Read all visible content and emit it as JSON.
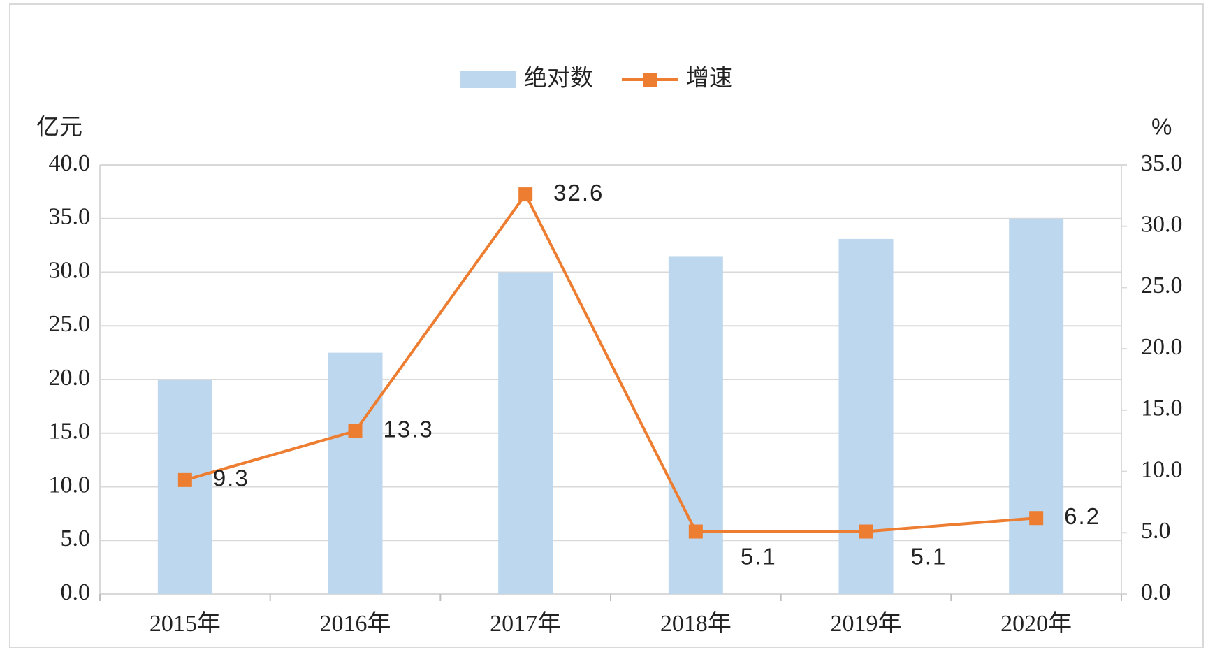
{
  "chart_data": {
    "type": "bar-line",
    "categories": [
      "2015年",
      "2016年",
      "2017年",
      "2018年",
      "2019年",
      "2020年"
    ],
    "series": [
      {
        "name": "绝对数",
        "type": "bar",
        "color": "#bdd7ee",
        "values": [
          20.0,
          22.5,
          30.0,
          31.5,
          33.1,
          35.0
        ]
      },
      {
        "name": "增速",
        "type": "line",
        "axis": "y2",
        "color": "#ed7d31",
        "values": [
          9.3,
          13.3,
          32.6,
          5.1,
          5.1,
          6.2
        ]
      }
    ],
    "y_label": "亿元",
    "y2_label": "%",
    "ylim": [
      0,
      40
    ],
    "yticks": [
      {
        "value": 0,
        "label": "0.0"
      },
      {
        "value": 5,
        "label": "5.0"
      },
      {
        "value": 10,
        "label": "10.0"
      },
      {
        "value": 15,
        "label": "15.0"
      },
      {
        "value": 20,
        "label": "20.0"
      },
      {
        "value": 25,
        "label": "25.0"
      },
      {
        "value": 30,
        "label": "30.0"
      },
      {
        "value": 35,
        "label": "35.0"
      },
      {
        "value": 40,
        "label": "40.0"
      }
    ],
    "y2lim": [
      0,
      35
    ],
    "y2ticks": [
      {
        "value": 0,
        "label": "0.0"
      },
      {
        "value": 5,
        "label": "5.0"
      },
      {
        "value": 10,
        "label": "10.0"
      },
      {
        "value": 15,
        "label": "15.0"
      },
      {
        "value": 20,
        "label": "20.0"
      },
      {
        "value": 25,
        "label": "25.0"
      },
      {
        "value": 30,
        "label": "30.0"
      },
      {
        "value": 35,
        "label": "35.0"
      }
    ],
    "grid": true,
    "legend": "top"
  }
}
